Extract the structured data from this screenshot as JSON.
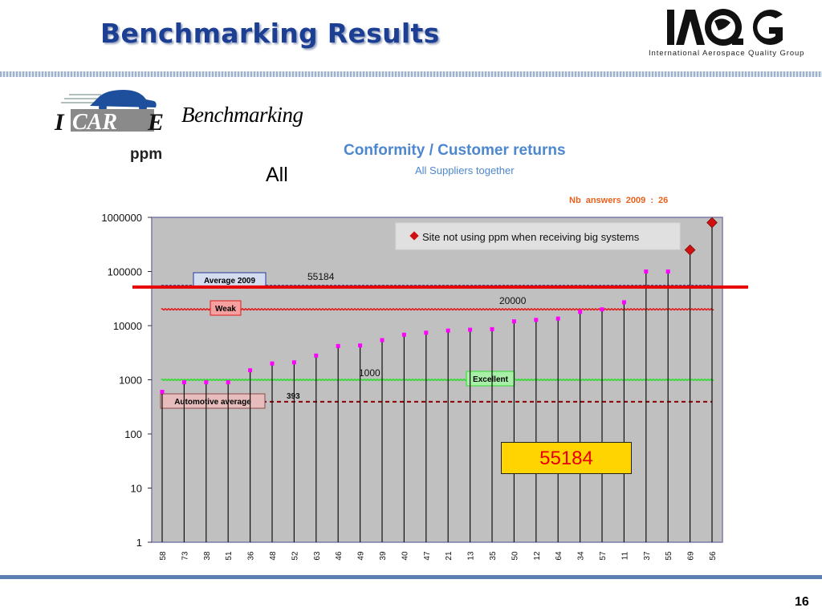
{
  "slide": {
    "title": "Benchmarking Results",
    "logo_tagline": "International Aerospace Quality Group",
    "icare_label": "Benchmarking",
    "page_number": "16"
  },
  "chart_data": {
    "type": "scatter",
    "title": "Conformity / Customer returns",
    "subtitle": "All Suppliers together",
    "unit_label": "ppm",
    "group_label": "All",
    "answers_note": "Nb answers   2009  :      26",
    "y_scale": "log",
    "ylim": [
      1,
      1000000
    ],
    "y_ticks": [
      "1",
      "10",
      "100",
      "1000",
      "10000",
      "100000",
      "1000000"
    ],
    "categories": [
      "58",
      "73",
      "38",
      "51",
      "36",
      "48",
      "52",
      "63",
      "46",
      "49",
      "39",
      "40",
      "47",
      "21",
      "13",
      "35",
      "50",
      "12",
      "64",
      "34",
      "57",
      "11",
      "37",
      "55",
      "69",
      "56"
    ],
    "values": [
      600,
      900,
      900,
      900,
      1500,
      2000,
      2100,
      2800,
      4200,
      4300,
      5400,
      6800,
      7400,
      8100,
      8400,
      8600,
      12000,
      12800,
      13500,
      18000,
      20000,
      27000,
      100000,
      100000,
      250000,
      800000
    ],
    "big_system_flags": [
      false,
      false,
      false,
      false,
      false,
      false,
      false,
      false,
      false,
      false,
      false,
      false,
      false,
      false,
      false,
      false,
      false,
      false,
      false,
      false,
      false,
      false,
      false,
      false,
      true,
      true
    ],
    "legend": "Site not using ppm when receiving big systems",
    "reference_lines": [
      {
        "name": "Average 2009",
        "value": 55184,
        "label": "55184",
        "color": "#2a3a9e"
      },
      {
        "name": "Weak",
        "value": 20000,
        "label": "20000",
        "color": "#e11d1d"
      },
      {
        "name": "Excellent",
        "value": 1000,
        "label": "1000",
        "color": "#2fdc2f"
      },
      {
        "name": "Automotive average",
        "value": 393,
        "label": "393",
        "color": "#8b0000"
      }
    ],
    "highlight_value": "55184",
    "colors": {
      "marker": "#ff00ff",
      "big_marker": "#d01010",
      "plot_bg": "#c0c0c0",
      "highlight_line": "#e60000"
    }
  }
}
